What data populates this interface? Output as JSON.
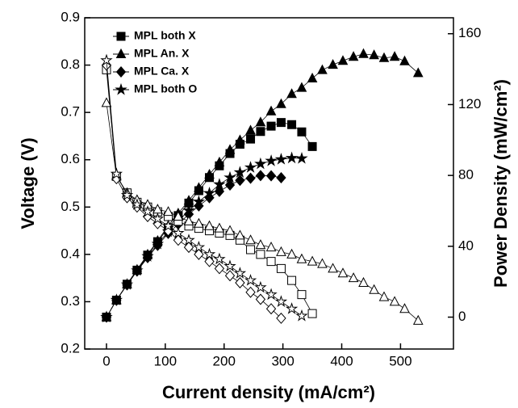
{
  "chart_data": {
    "type": "scatter",
    "xlabel": "Current density (mA/cm²)",
    "ylabel": "Voltage (V)",
    "y2label": "Power Density (mW/cm²)",
    "xlim": [
      -37,
      590
    ],
    "xticks": [
      0,
      100,
      200,
      300,
      400,
      500
    ],
    "ylim": [
      0.2,
      0.9
    ],
    "yticks": [
      0.2,
      0.3,
      0.4,
      0.5,
      0.6,
      0.7,
      0.8,
      0.9
    ],
    "y2lim": [
      -18,
      169
    ],
    "y2ticks": [
      0,
      40,
      80,
      120,
      160
    ],
    "legend": "upper left",
    "series": [
      {
        "name": "MPL both X",
        "marker": "square",
        "filled": true,
        "color": "#000000",
        "axis": "y2",
        "x": [
          0,
          17,
          35,
          52,
          70,
          87,
          105,
          122,
          140,
          157,
          175,
          192,
          210,
          227,
          245,
          262,
          280,
          297,
          315,
          332,
          350
        ],
        "values": [
          0,
          9.6,
          18.6,
          26.5,
          35,
          42.6,
          50.4,
          57.3,
          64.4,
          71.4,
          78.8,
          85.4,
          92.4,
          97.6,
          100.5,
          104.8,
          107.8,
          109.9,
          108.7,
          104.6,
          96.3
        ]
      },
      {
        "name": "MPL An. X",
        "marker": "triangle",
        "filled": true,
        "color": "#000000",
        "axis": "y2",
        "x": [
          0,
          17,
          35,
          52,
          70,
          87,
          105,
          122,
          140,
          157,
          175,
          192,
          210,
          227,
          245,
          262,
          280,
          297,
          315,
          332,
          350,
          367,
          385,
          402,
          420,
          437,
          455,
          472,
          490,
          507,
          530
        ],
        "values": [
          0,
          9.6,
          18.6,
          26.8,
          35.4,
          43.1,
          51.5,
          58.6,
          65.8,
          73,
          80.5,
          87.4,
          94.5,
          99.9,
          105.4,
          110,
          116.2,
          120.3,
          126,
          129.5,
          134.8,
          139.5,
          142.5,
          144.7,
          147,
          148.6,
          147.9,
          146.3,
          147,
          144.5,
          137.8
        ]
      },
      {
        "name": "MPL Ca. X",
        "marker": "diamond",
        "filled": true,
        "color": "#000000",
        "axis": "y2",
        "x": [
          0,
          17,
          35,
          52,
          70,
          87,
          105,
          122,
          140,
          157,
          175,
          192,
          210,
          227,
          245,
          262,
          280,
          297
        ],
        "values": [
          0,
          9.5,
          18.2,
          26,
          33.6,
          40.5,
          47.3,
          52.5,
          58.1,
          62.8,
          67.4,
          71,
          74.6,
          77.2,
          78.4,
          79.9,
          79.8,
          78.7
        ]
      },
      {
        "name": "MPL both O",
        "marker": "star",
        "filled": true,
        "color": "#000000",
        "axis": "y2",
        "x": [
          0,
          17,
          35,
          52,
          70,
          87,
          105,
          122,
          140,
          157,
          175,
          192,
          210,
          227,
          245,
          262,
          280,
          297,
          315,
          332
        ],
        "values": [
          0,
          9.7,
          18.4,
          26.3,
          34.3,
          41.3,
          48.3,
          54.3,
          60.2,
          65.2,
          70,
          74.9,
          78.8,
          81.7,
          84.5,
          86.5,
          88.2,
          89.1,
          89.8,
          89.6
        ]
      },
      {
        "marker": "square",
        "filled": false,
        "color": "#000000",
        "axis": "y",
        "x": [
          0,
          17,
          35,
          52,
          70,
          87,
          105,
          122,
          140,
          157,
          175,
          192,
          210,
          227,
          245,
          262,
          280,
          297,
          315,
          332,
          350
        ],
        "values": [
          0.79,
          0.565,
          0.53,
          0.51,
          0.5,
          0.49,
          0.48,
          0.47,
          0.46,
          0.455,
          0.45,
          0.445,
          0.44,
          0.43,
          0.41,
          0.4,
          0.385,
          0.37,
          0.345,
          0.315,
          0.275
        ]
      },
      {
        "marker": "triangle",
        "filled": false,
        "color": "#000000",
        "axis": "y",
        "x": [
          0,
          17,
          35,
          52,
          70,
          87,
          105,
          122,
          140,
          157,
          175,
          192,
          210,
          227,
          245,
          262,
          280,
          297,
          315,
          332,
          350,
          367,
          385,
          402,
          420,
          437,
          455,
          472,
          490,
          507,
          530
        ],
        "values": [
          0.72,
          0.565,
          0.53,
          0.515,
          0.505,
          0.495,
          0.49,
          0.48,
          0.47,
          0.465,
          0.46,
          0.455,
          0.45,
          0.44,
          0.43,
          0.42,
          0.415,
          0.405,
          0.4,
          0.39,
          0.385,
          0.38,
          0.37,
          0.36,
          0.35,
          0.34,
          0.325,
          0.31,
          0.3,
          0.285,
          0.26
        ]
      },
      {
        "marker": "diamond",
        "filled": false,
        "color": "#000000",
        "axis": "y",
        "x": [
          0,
          17,
          35,
          52,
          70,
          87,
          105,
          122,
          140,
          157,
          175,
          192,
          210,
          227,
          245,
          262,
          280,
          297
        ],
        "values": [
          0.8,
          0.56,
          0.52,
          0.5,
          0.48,
          0.465,
          0.45,
          0.43,
          0.415,
          0.4,
          0.385,
          0.37,
          0.355,
          0.34,
          0.32,
          0.305,
          0.285,
          0.265
        ]
      },
      {
        "marker": "star",
        "filled": false,
        "color": "#000000",
        "axis": "y",
        "x": [
          0,
          17,
          35,
          52,
          70,
          87,
          105,
          122,
          140,
          157,
          175,
          192,
          210,
          227,
          245,
          262,
          280,
          297,
          315,
          332
        ],
        "values": [
          0.81,
          0.57,
          0.525,
          0.505,
          0.49,
          0.475,
          0.46,
          0.445,
          0.43,
          0.415,
          0.4,
          0.39,
          0.375,
          0.36,
          0.345,
          0.33,
          0.315,
          0.3,
          0.285,
          0.27
        ]
      }
    ]
  }
}
